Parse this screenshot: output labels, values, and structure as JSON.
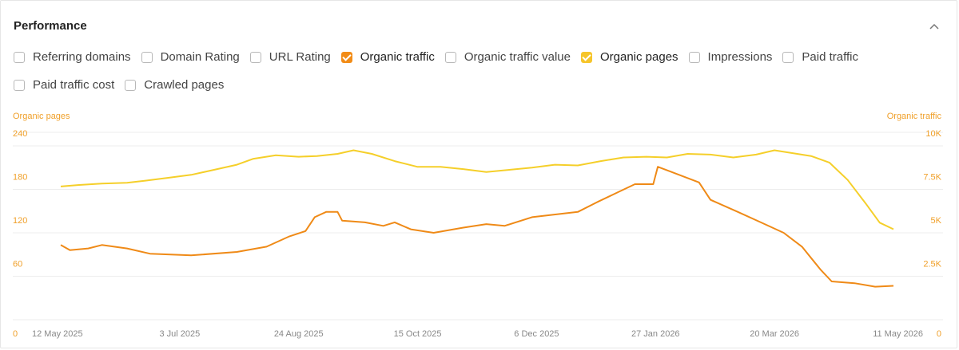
{
  "panel": {
    "title": "Performance"
  },
  "options": [
    [
      {
        "label": "Referring domains",
        "checked": false
      },
      {
        "label": "Domain Rating",
        "checked": false
      },
      {
        "label": "URL Rating",
        "checked": false
      },
      {
        "label": "Organic traffic",
        "checked": true,
        "color": "#f28c17"
      },
      {
        "label": "Organic traffic value",
        "checked": false
      },
      {
        "label": "Organic pages",
        "checked": true,
        "color": "#f6c52b"
      },
      {
        "label": "Impressions",
        "checked": false
      },
      {
        "label": "Paid traffic",
        "checked": false
      }
    ],
    [
      {
        "label": "Paid traffic cost",
        "checked": false
      },
      {
        "label": "Crawled pages",
        "checked": false
      }
    ]
  ],
  "icons": {
    "collapse": "chevron-up-icon"
  },
  "colors": {
    "organic_traffic": "#ef8a17",
    "organic_pages": "#f5cf2a",
    "grid": "#ededed",
    "axis_text": "#f0a02a",
    "date_text": "#888888"
  },
  "chart_data": {
    "type": "line",
    "left_axis": {
      "label": "Organic pages",
      "ticks": [
        "0",
        "60",
        "120",
        "180",
        "240"
      ],
      "range": [
        0,
        240
      ]
    },
    "right_axis": {
      "label": "Organic traffic",
      "ticks": [
        "0",
        "2.5K",
        "5K",
        "7.5K",
        "10K"
      ],
      "range": [
        0,
        10000
      ]
    },
    "x_axis": {
      "ticks": [
        "12 May 2025",
        "3 Jul 2025",
        "24 Aug 2025",
        "15 Oct 2025",
        "6 Dec 2025",
        "27 Jan 2026",
        "20 Mar 2026",
        "11 May 2026"
      ],
      "range": [
        "2025-05-12",
        "2026-05-11"
      ]
    },
    "grid": true,
    "series": [
      {
        "name": "Organic pages",
        "axis": "left",
        "color": "#f5cf2a",
        "points": [
          [
            "2025-05-12",
            184
          ],
          [
            "2025-05-20",
            186
          ],
          [
            "2025-05-30",
            188
          ],
          [
            "2025-06-10",
            189
          ],
          [
            "2025-06-18",
            192
          ],
          [
            "2025-06-28",
            196
          ],
          [
            "2025-07-08",
            200
          ],
          [
            "2025-07-18",
            207
          ],
          [
            "2025-07-28",
            214
          ],
          [
            "2025-08-04",
            222
          ],
          [
            "2025-08-14",
            227
          ],
          [
            "2025-08-24",
            225
          ],
          [
            "2025-09-01",
            226
          ],
          [
            "2025-09-10",
            229
          ],
          [
            "2025-09-17",
            234
          ],
          [
            "2025-09-25",
            229
          ],
          [
            "2025-10-05",
            219
          ],
          [
            "2025-10-15",
            211
          ],
          [
            "2025-10-25",
            211
          ],
          [
            "2025-11-04",
            208
          ],
          [
            "2025-11-14",
            204
          ],
          [
            "2025-11-24",
            207
          ],
          [
            "2025-12-04",
            210
          ],
          [
            "2025-12-14",
            214
          ],
          [
            "2025-12-24",
            213
          ],
          [
            "2026-01-03",
            219
          ],
          [
            "2026-01-13",
            224
          ],
          [
            "2026-01-23",
            225
          ],
          [
            "2026-02-01",
            224
          ],
          [
            "2026-02-10",
            229
          ],
          [
            "2026-02-20",
            228
          ],
          [
            "2026-03-02",
            224
          ],
          [
            "2026-03-12",
            228
          ],
          [
            "2026-03-20",
            234
          ],
          [
            "2026-03-28",
            230
          ],
          [
            "2026-04-05",
            226
          ],
          [
            "2026-04-13",
            217
          ],
          [
            "2026-04-21",
            193
          ],
          [
            "2026-04-29",
            160
          ],
          [
            "2026-05-05",
            134
          ],
          [
            "2026-05-11",
            125
          ]
        ]
      },
      {
        "name": "Organic traffic",
        "axis": "right",
        "color": "#ef8a17",
        "points": [
          [
            "2025-05-12",
            4300
          ],
          [
            "2025-05-16",
            4000
          ],
          [
            "2025-05-24",
            4100
          ],
          [
            "2025-05-30",
            4300
          ],
          [
            "2025-06-10",
            4100
          ],
          [
            "2025-06-20",
            3800
          ],
          [
            "2025-07-08",
            3700
          ],
          [
            "2025-07-28",
            3900
          ],
          [
            "2025-08-10",
            4200
          ],
          [
            "2025-08-20",
            4800
          ],
          [
            "2025-08-27",
            5100
          ],
          [
            "2025-08-31",
            5900
          ],
          [
            "2025-09-05",
            6200
          ],
          [
            "2025-09-10",
            6200
          ],
          [
            "2025-09-12",
            5700
          ],
          [
            "2025-09-22",
            5600
          ],
          [
            "2025-09-30",
            5400
          ],
          [
            "2025-10-05",
            5600
          ],
          [
            "2025-10-12",
            5200
          ],
          [
            "2025-10-22",
            5000
          ],
          [
            "2025-11-04",
            5300
          ],
          [
            "2025-11-14",
            5500
          ],
          [
            "2025-11-22",
            5400
          ],
          [
            "2025-12-04",
            5900
          ],
          [
            "2025-12-24",
            6200
          ],
          [
            "2026-01-02",
            6800
          ],
          [
            "2026-01-10",
            7300
          ],
          [
            "2026-01-18",
            7800
          ],
          [
            "2026-01-26",
            7800
          ],
          [
            "2026-01-28",
            8800
          ],
          [
            "2026-02-03",
            8500
          ],
          [
            "2026-02-15",
            7900
          ],
          [
            "2026-02-20",
            6900
          ],
          [
            "2026-03-04",
            6200
          ],
          [
            "2026-03-14",
            5600
          ],
          [
            "2026-03-24",
            5000
          ],
          [
            "2026-04-01",
            4200
          ],
          [
            "2026-04-09",
            2900
          ],
          [
            "2026-04-14",
            2200
          ],
          [
            "2026-04-24",
            2100
          ],
          [
            "2026-05-03",
            1900
          ],
          [
            "2026-05-11",
            1950
          ]
        ]
      }
    ]
  }
}
